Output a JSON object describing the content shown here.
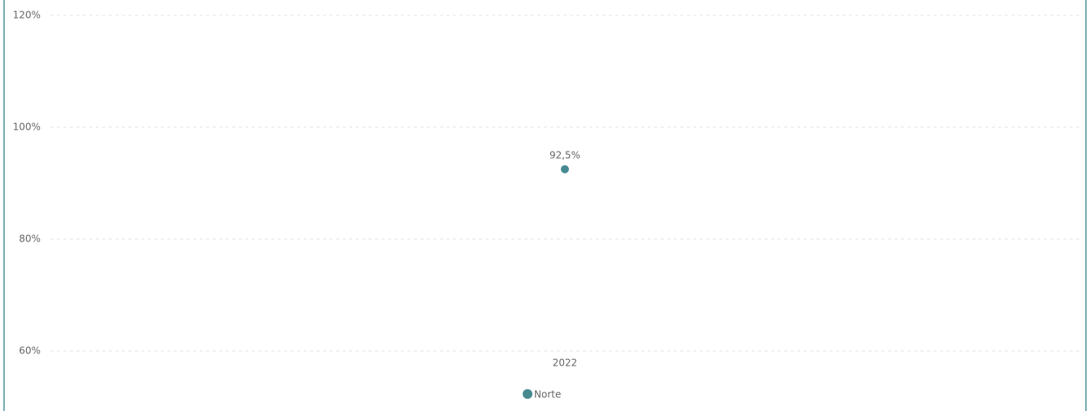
{
  "chart_data": {
    "type": "line",
    "categories": [
      "2022"
    ],
    "series": [
      {
        "name": "Norte",
        "color": "#468a90",
        "values": [
          92.5
        ],
        "value_labels": [
          "92,5%"
        ]
      }
    ],
    "ylim": [
      60,
      120
    ],
    "yticks": [
      {
        "value": 60,
        "label": "60%"
      },
      {
        "value": 80,
        "label": "80%"
      },
      {
        "value": 100,
        "label": "100%"
      },
      {
        "value": 120,
        "label": "120%"
      }
    ],
    "grid": true,
    "legend": "bottom"
  }
}
